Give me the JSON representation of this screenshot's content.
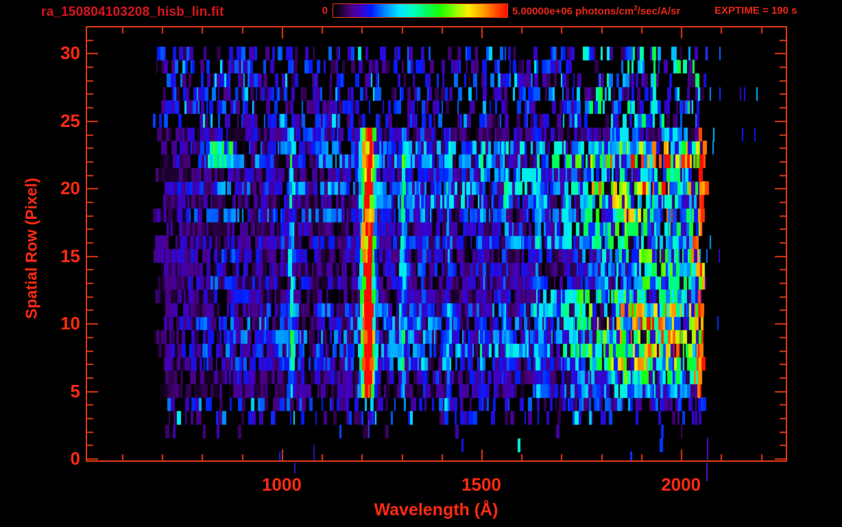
{
  "header": {
    "title": "ra_150804103208_hisb_lin.fit",
    "colorbar_min_label": "0",
    "colorbar_max_label": "5.00000e+06",
    "units_prefix": " photons/cm",
    "units_sup": "2",
    "units_suffix": "/sec/A/sr",
    "exptime_label": "EXPTIME = 190 s"
  },
  "colors": {
    "background": "#000000",
    "frame": "#e23912",
    "tick_label": "#ff2a12",
    "title": "#d8151e",
    "annotation": "#e82818"
  },
  "chart_data": {
    "type": "heatmap",
    "title": "ra_150804103208_hisb_lin.fit",
    "xlabel": "Wavelength (Å)",
    "ylabel": "Spatial Row (Pixel)",
    "x_ticks": [
      1000,
      1500,
      2000
    ],
    "x_minor_step": 100,
    "x_major_step": 500,
    "x_axis_range": [
      509,
      2266
    ],
    "y_ticks": [
      0,
      5,
      10,
      15,
      20,
      25,
      30
    ],
    "y_minor_step": 1,
    "y_major_step": 5,
    "y_axis_range": [
      -0.25,
      32.0
    ],
    "colorbar": {
      "min": 0,
      "max": 5000000,
      "min_label": "0",
      "max_label": "5.00000e+06",
      "units": "photons/cm^2/sec/A/sr"
    },
    "exposure_time_seconds": 190,
    "colormap": [
      [
        0.0,
        "#000000"
      ],
      [
        0.04,
        "#190028"
      ],
      [
        0.1,
        "#4b0082"
      ],
      [
        0.16,
        "#3c00c8"
      ],
      [
        0.22,
        "#001eff"
      ],
      [
        0.3,
        "#008cff"
      ],
      [
        0.38,
        "#00e6ff"
      ],
      [
        0.46,
        "#00ffbe"
      ],
      [
        0.54,
        "#00ff5a"
      ],
      [
        0.62,
        "#1eff00"
      ],
      [
        0.7,
        "#8cff00"
      ],
      [
        0.78,
        "#ffeb00"
      ],
      [
        0.86,
        "#ffa000"
      ],
      [
        0.93,
        "#ff5000"
      ],
      [
        1.0,
        "#ff0a00"
      ]
    ],
    "seed": 20150804,
    "signal_rows": [
      5,
      24
    ],
    "row_gain": [
      0.02,
      0.03,
      0.07,
      0.26,
      0.34,
      0.6,
      0.78,
      0.9,
      1.0,
      0.95,
      1.0,
      0.92,
      0.96,
      0.9,
      0.96,
      1.0,
      0.92,
      0.95,
      1.0,
      1.08,
      1.12,
      1.0,
      1.02,
      0.96,
      0.8,
      0.42,
      0.38,
      0.34,
      0.32,
      0.3,
      0.28,
      0.0
    ],
    "continuum": [
      [
        675,
        0.15
      ],
      [
        850,
        0.16
      ],
      [
        1000,
        0.17
      ],
      [
        1150,
        0.17
      ],
      [
        1300,
        0.18
      ],
      [
        1450,
        0.19
      ],
      [
        1600,
        0.22
      ],
      [
        1700,
        0.27
      ],
      [
        1760,
        0.36
      ],
      [
        1820,
        0.45
      ],
      [
        1880,
        0.5
      ],
      [
        1940,
        0.52
      ],
      [
        2000,
        0.5
      ],
      [
        2065,
        0.47
      ]
    ],
    "emission_lines": [
      {
        "wavelength": 1025,
        "strength": 0.3,
        "sigma": 7
      },
      {
        "wavelength": 1216,
        "strength": 0.95,
        "sigma": 7,
        "core": 8,
        "wing": 18
      },
      {
        "wavelength": 1304,
        "strength": 0.3,
        "sigma": 7
      },
      {
        "wavelength": 1356,
        "strength": 0.12,
        "sigma": 6
      },
      {
        "wavelength": 1416,
        "strength": 0.16,
        "sigma": 7
      },
      {
        "wavelength": 1502,
        "strength": 0.14,
        "sigma": 6
      },
      {
        "wavelength": 1560,
        "strength": 0.13,
        "sigma": 6
      },
      {
        "wavelength": 1640,
        "strength": 0.12,
        "sigma": 6
      },
      {
        "wavelength": 1860,
        "strength": 0.1,
        "sigma": 9
      },
      {
        "wavelength": 1930,
        "strength": 0.1,
        "sigma": 8
      }
    ],
    "blob": {
      "rows": [
        22,
        23
      ],
      "wavelength_range": [
        818,
        878
      ],
      "strength": 0.3
    },
    "row_start_wavelength": [
      676,
      714
    ],
    "row_end_wavelength": [
      2040,
      2062
    ],
    "sparse_tail_wavelength": 2200
  }
}
